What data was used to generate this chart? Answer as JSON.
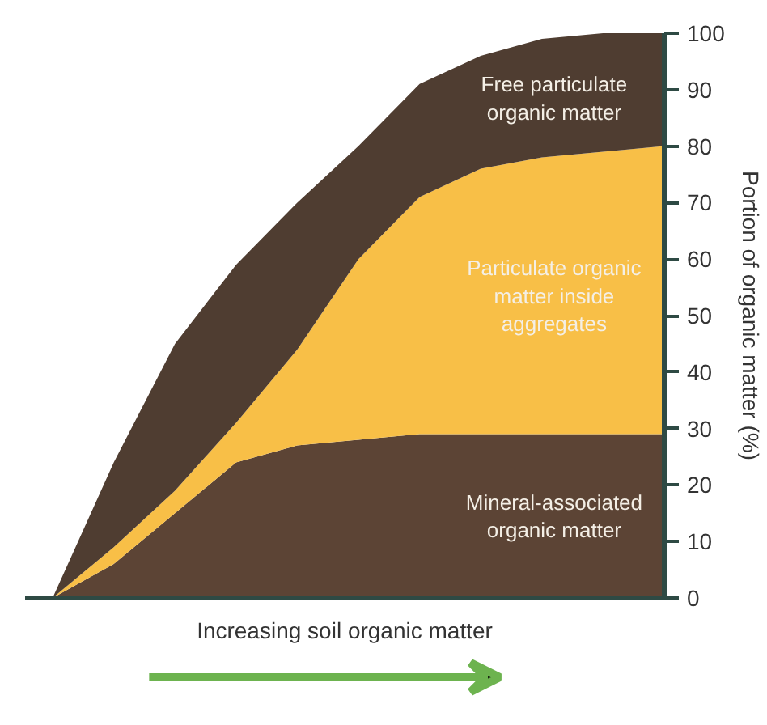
{
  "chart_data": {
    "type": "area",
    "stacked": true,
    "xlabel": "Increasing soil organic matter",
    "ylabel": "Portion of organic matter (%)",
    "categories": [
      null,
      null,
      null,
      null,
      null,
      null,
      null,
      null,
      null,
      null,
      null
    ],
    "series": [
      {
        "name": "Mineral-associated organic matter",
        "color": "#5c4435",
        "values": [
          0,
          6,
          15,
          24,
          27,
          28,
          29,
          29,
          29,
          29,
          29
        ]
      },
      {
        "name": "Particulate organic matter inside aggregates",
        "color": "#f8bf47",
        "values": [
          0,
          3,
          4,
          7,
          17,
          32,
          42,
          47,
          49,
          50,
          51
        ]
      },
      {
        "name": "Free particulate organic matter",
        "color": "#4f3d31",
        "values": [
          0,
          15,
          26,
          28,
          26,
          20,
          20,
          20,
          21,
          21,
          20
        ]
      }
    ],
    "ylim": [
      0,
      100
    ],
    "yticks": [
      0,
      10,
      20,
      30,
      40,
      50,
      60,
      70,
      80,
      90,
      100
    ],
    "tick_labels": "y",
    "grid": false,
    "legend": false
  }
}
